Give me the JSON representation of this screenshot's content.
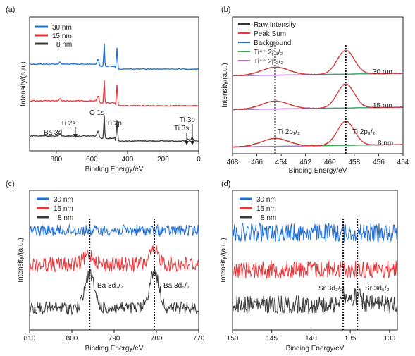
{
  "colors": {
    "series_30nm": "#1f6fd6",
    "series_15nm": "#e8373a",
    "series_8nm": "#3a3a3a",
    "raw_intensity": "#333333",
    "peak_sum": "#e8373a",
    "background": "#1f6fd6",
    "ti4_2p12": "#3aa84a",
    "ti4_2p32": "#b36fd6"
  },
  "chart_data": [
    {
      "panel": "(a)",
      "type": "line",
      "xlabel": "Binding Energy/eV",
      "ylabel": "Intensity/(a.u.)",
      "xlim": [
        950,
        0
      ],
      "xticks": [
        800,
        600,
        400,
        200,
        0
      ],
      "legend": [
        "30 nm",
        "15 nm",
        "8 nm"
      ],
      "legend_position": "top-left",
      "series": [
        {
          "name": "30 nm",
          "peaks": [
            [
              780,
              0.05
            ],
            [
              565,
              0.12
            ],
            [
              531,
              0.55
            ],
            [
              459,
              0.5
            ]
          ]
        },
        {
          "name": "15 nm",
          "peaks": [
            [
              780,
              0.05
            ],
            [
              565,
              0.12
            ],
            [
              531,
              0.55
            ],
            [
              459,
              0.5
            ]
          ]
        },
        {
          "name": "8 nm",
          "peaks": [
            [
              780,
              0.05
            ],
            [
              565,
              0.12
            ],
            [
              531,
              0.55
            ],
            [
              459,
              0.5
            ],
            [
              61,
              0.05
            ],
            [
              37,
              0.08
            ]
          ]
        }
      ],
      "annotations": [
        "Ba 3d",
        "Ti 2s",
        "O 1s",
        "Ti 2p",
        "Ti 3s",
        "Ti 3p"
      ]
    },
    {
      "panel": "(b)",
      "type": "line",
      "xlabel": "Binding Energy/eV",
      "ylabel": "Intensity/(a.u.)",
      "xlim": [
        468,
        454
      ],
      "xticks": [
        468,
        466,
        464,
        462,
        460,
        458,
        456,
        454
      ],
      "legend": [
        "Raw Intensity",
        "Peak Sum",
        "Background",
        "Ti⁴⁺ 2p₁/₂",
        "Ti⁴⁺ 2p₃/₂"
      ],
      "legend_position": "top-left",
      "series_labels": [
        "30 nm",
        "15 nm",
        "8 nm"
      ],
      "peaks": {
        "ti_2p12": 464.5,
        "ti_2p32": 458.7
      },
      "reference_lines": [
        464.5,
        458.7
      ],
      "annotations": [
        "Ti 2p₁/₂",
        "Ti 2p₃/₂"
      ]
    },
    {
      "panel": "(c)",
      "type": "line",
      "xlabel": "Binding Energy/eV",
      "ylabel": "Intensity/(a.u.)",
      "xlim": [
        810,
        770
      ],
      "xticks": [
        810,
        800,
        790,
        780,
        770
      ],
      "legend": [
        "30 nm",
        "15 nm",
        "8 nm"
      ],
      "legend_position": "top-left",
      "reference_lines": [
        795.8,
        780.5
      ],
      "annotations": [
        "Ba 3d₃/₂",
        "Ba 3d₅/₂"
      ]
    },
    {
      "panel": "(d)",
      "type": "line",
      "xlabel": "Binding Energy/eV",
      "ylabel": "Intensity/(a.u.)",
      "xlim": [
        150,
        129
      ],
      "xticks": [
        150,
        145,
        140,
        135,
        130
      ],
      "legend": [
        "30 nm",
        "15 nm",
        "8 nm"
      ],
      "legend_position": "top-left",
      "reference_lines": [
        135.9,
        134.1
      ],
      "annotations": [
        "Sr 3d₃/₂",
        "Sr 3d₅/₂"
      ]
    }
  ]
}
